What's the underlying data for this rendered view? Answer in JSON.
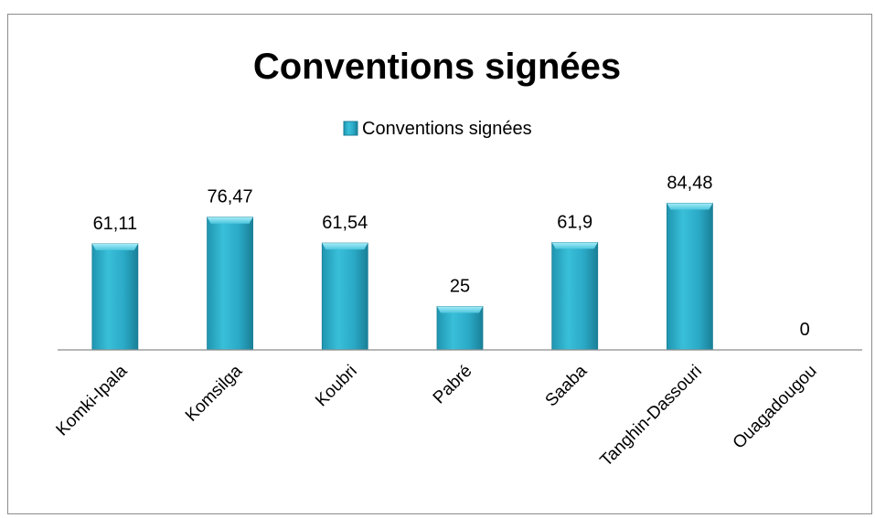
{
  "chart_data": {
    "type": "bar",
    "title": "Conventions signées",
    "legend": {
      "position": "top",
      "entries": [
        "Conventions signées"
      ]
    },
    "categories": [
      "Komki-Ipala",
      "Komsilga",
      "Koubri",
      "Pabré",
      "Saaba",
      "Tanghin-Dassouri",
      "Ouagadougou"
    ],
    "series": [
      {
        "name": "Conventions signées",
        "values": [
          61.11,
          76.47,
          61.54,
          25,
          61.9,
          84.48,
          0
        ]
      }
    ],
    "data_labels": [
      "61,11",
      "76,47",
      "61,54",
      "25",
      "61,9",
      "84,48",
      "0"
    ],
    "grid": false,
    "colors": {
      "bar": "#2fb3cf",
      "bar_light": "#7fdcef",
      "bar_dark": "#1b7f96",
      "axis": "#8c8c8c",
      "text": "#000000"
    }
  }
}
